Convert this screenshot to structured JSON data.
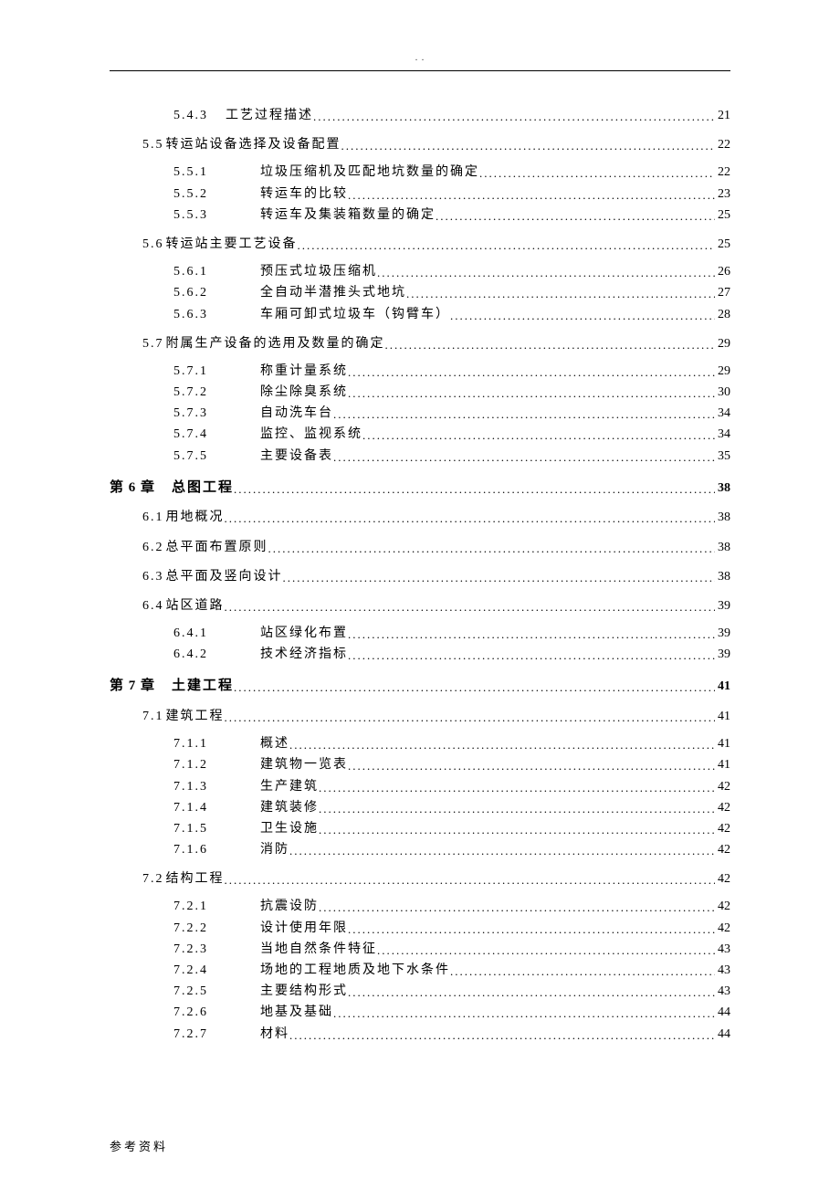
{
  "header_marker": ". .",
  "footer_text": "参考资料",
  "entries": [
    {
      "level": 3,
      "num": "5.4.3",
      "title": "工艺过程描述",
      "page": "21",
      "sublevel_indent": false
    },
    {
      "level": 2,
      "num": "5.5",
      "title": "转运站设备选择及设备配置",
      "page": "22"
    },
    {
      "level": 3,
      "num": "5.5.1",
      "title": "垃圾压缩机及匹配地坑数量的确定",
      "page": "22"
    },
    {
      "level": 3,
      "num": "5.5.2",
      "title": "转运车的比较",
      "page": "23"
    },
    {
      "level": 3,
      "num": "5.5.3",
      "title": "转运车及集装箱数量的确定",
      "page": "25"
    },
    {
      "level": 2,
      "num": "5.6",
      "title": "转运站主要工艺设备",
      "page": "25"
    },
    {
      "level": 3,
      "num": "5.6.1",
      "title": "预压式垃圾压缩机",
      "page": "26"
    },
    {
      "level": 3,
      "num": "5.6.2",
      "title": "全自动半潜推头式地坑",
      "page": "27"
    },
    {
      "level": 3,
      "num": "5.6.3",
      "title": "车厢可卸式垃圾车（钩臂车）",
      "page": "28"
    },
    {
      "level": 2,
      "num": "5.7",
      "title": "附属生产设备的选用及数量的确定",
      "page": "29"
    },
    {
      "level": 3,
      "num": "5.7.1",
      "title": "称重计量系统",
      "page": "29"
    },
    {
      "level": 3,
      "num": "5.7.2",
      "title": "除尘除臭系统",
      "page": "30"
    },
    {
      "level": 3,
      "num": "5.7.3",
      "title": "自动洗车台",
      "page": "34"
    },
    {
      "level": 3,
      "num": "5.7.4",
      "title": "监控、监视系统",
      "page": "34"
    },
    {
      "level": 3,
      "num": "5.7.5",
      "title": "主要设备表",
      "page": "35"
    },
    {
      "level": 1,
      "num": "第 6 章",
      "title": "总图工程",
      "page": "38"
    },
    {
      "level": 2,
      "num": "6.1",
      "title": "用地概况",
      "page": "38"
    },
    {
      "level": 2,
      "num": "6.2",
      "title": "总平面布置原则",
      "page": "38"
    },
    {
      "level": 2,
      "num": "6.3",
      "title": "总平面及竖向设计",
      "page": "38"
    },
    {
      "level": 2,
      "num": "6.4",
      "title": "站区道路",
      "page": "39"
    },
    {
      "level": 3,
      "num": "6.4.1",
      "title": "站区绿化布置",
      "page": "39"
    },
    {
      "level": 3,
      "num": "6.4.2",
      "title": "技术经济指标",
      "page": "39"
    },
    {
      "level": 1,
      "num": "第 7 章",
      "title": "土建工程",
      "page": "41"
    },
    {
      "level": 2,
      "num": "7.1",
      "title": "建筑工程",
      "page": "41"
    },
    {
      "level": 3,
      "num": "7.1.1",
      "title": "概述",
      "page": "41"
    },
    {
      "level": 3,
      "num": "7.1.2",
      "title": "建筑物一览表",
      "page": "41"
    },
    {
      "level": 3,
      "num": "7.1.3",
      "title": "生产建筑",
      "page": "42"
    },
    {
      "level": 3,
      "num": "7.1.4",
      "title": "建筑装修",
      "page": "42"
    },
    {
      "level": 3,
      "num": "7.1.5",
      "title": "卫生设施",
      "page": "42"
    },
    {
      "level": 3,
      "num": "7.1.6",
      "title": "消防",
      "page": "42"
    },
    {
      "level": 2,
      "num": "7.2",
      "title": "结构工程",
      "page": "42"
    },
    {
      "level": 3,
      "num": "7.2.1",
      "title": "抗震设防",
      "page": "42"
    },
    {
      "level": 3,
      "num": "7.2.2",
      "title": "设计使用年限",
      "page": "42"
    },
    {
      "level": 3,
      "num": "7.2.3",
      "title": "当地自然条件特征",
      "page": "43"
    },
    {
      "level": 3,
      "num": "7.2.4",
      "title": "场地的工程地质及地下水条件",
      "page": "43"
    },
    {
      "level": 3,
      "num": "7.2.5",
      "title": "主要结构形式",
      "page": "43"
    },
    {
      "level": 3,
      "num": "7.2.6",
      "title": "地基及基础",
      "page": "44"
    },
    {
      "level": 3,
      "num": "7.2.7",
      "title": "材料",
      "page": "44"
    }
  ]
}
